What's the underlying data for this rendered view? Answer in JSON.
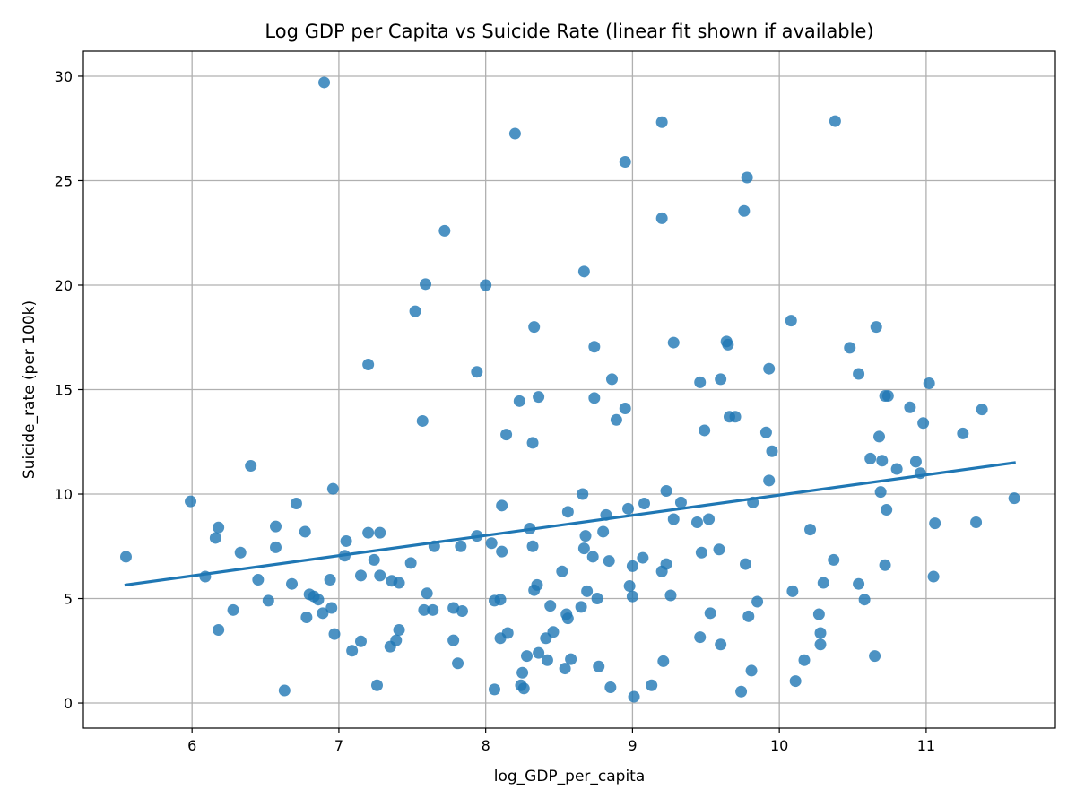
{
  "chart_data": {
    "type": "scatter",
    "title": "Log GDP per Capita vs Suicide Rate (linear fit shown if available)",
    "xlabel": "log_GDP_per_capita",
    "ylabel": "Suicide_rate (per 100k)",
    "xlim": [
      5.26,
      11.88
    ],
    "ylim": [
      -1.2,
      31.2
    ],
    "xticks": [
      6,
      7,
      8,
      9,
      10,
      11
    ],
    "yticks": [
      0,
      5,
      10,
      15,
      20,
      25,
      30
    ],
    "grid": true,
    "color": "#1f77b4",
    "fit_line": {
      "x": [
        5.55,
        11.6
      ],
      "y": [
        5.65,
        11.5
      ]
    },
    "points": [
      [
        5.55,
        7.0
      ],
      [
        5.99,
        9.65
      ],
      [
        6.09,
        6.05
      ],
      [
        6.16,
        7.9
      ],
      [
        6.18,
        8.4
      ],
      [
        6.18,
        3.5
      ],
      [
        6.28,
        4.45
      ],
      [
        6.33,
        7.2
      ],
      [
        6.4,
        11.35
      ],
      [
        6.45,
        5.9
      ],
      [
        6.52,
        4.9
      ],
      [
        6.57,
        8.45
      ],
      [
        6.57,
        7.45
      ],
      [
        6.63,
        0.6
      ],
      [
        6.68,
        5.7
      ],
      [
        6.71,
        9.55
      ],
      [
        6.77,
        8.2
      ],
      [
        6.78,
        4.1
      ],
      [
        6.8,
        5.2
      ],
      [
        6.83,
        5.1
      ],
      [
        6.86,
        4.95
      ],
      [
        6.89,
        4.3
      ],
      [
        6.9,
        29.7
      ],
      [
        6.94,
        5.9
      ],
      [
        6.95,
        4.55
      ],
      [
        6.96,
        10.25
      ],
      [
        6.97,
        3.3
      ],
      [
        7.04,
        7.05
      ],
      [
        7.05,
        7.75
      ],
      [
        7.09,
        2.5
      ],
      [
        7.15,
        2.95
      ],
      [
        7.15,
        6.1
      ],
      [
        7.2,
        16.2
      ],
      [
        7.2,
        8.15
      ],
      [
        7.24,
        6.85
      ],
      [
        7.26,
        0.85
      ],
      [
        7.28,
        8.15
      ],
      [
        7.28,
        6.1
      ],
      [
        7.35,
        2.7
      ],
      [
        7.36,
        5.85
      ],
      [
        7.39,
        3.0
      ],
      [
        7.41,
        5.75
      ],
      [
        7.41,
        3.5
      ],
      [
        7.49,
        6.7
      ],
      [
        7.52,
        18.75
      ],
      [
        7.57,
        13.5
      ],
      [
        7.58,
        4.45
      ],
      [
        7.59,
        20.05
      ],
      [
        7.6,
        5.25
      ],
      [
        7.64,
        4.45
      ],
      [
        7.65,
        7.5
      ],
      [
        7.72,
        22.6
      ],
      [
        7.78,
        3.0
      ],
      [
        7.78,
        4.55
      ],
      [
        7.81,
        1.9
      ],
      [
        7.83,
        7.5
      ],
      [
        7.84,
        4.4
      ],
      [
        7.94,
        15.85
      ],
      [
        7.94,
        8.0
      ],
      [
        8.0,
        20.0
      ],
      [
        8.04,
        7.65
      ],
      [
        8.06,
        0.65
      ],
      [
        8.06,
        4.9
      ],
      [
        8.1,
        4.95
      ],
      [
        8.1,
        3.1
      ],
      [
        8.11,
        7.25
      ],
      [
        8.11,
        9.45
      ],
      [
        8.14,
        12.85
      ],
      [
        8.15,
        3.35
      ],
      [
        8.2,
        27.25
      ],
      [
        8.23,
        14.45
      ],
      [
        8.24,
        0.85
      ],
      [
        8.25,
        1.45
      ],
      [
        8.26,
        0.7
      ],
      [
        8.28,
        2.25
      ],
      [
        8.3,
        8.35
      ],
      [
        8.32,
        12.45
      ],
      [
        8.32,
        7.5
      ],
      [
        8.33,
        18.0
      ],
      [
        8.33,
        5.4
      ],
      [
        8.35,
        5.65
      ],
      [
        8.36,
        14.65
      ],
      [
        8.36,
        2.4
      ],
      [
        8.41,
        3.1
      ],
      [
        8.42,
        2.05
      ],
      [
        8.44,
        4.65
      ],
      [
        8.46,
        3.4
      ],
      [
        8.52,
        6.3
      ],
      [
        8.54,
        1.65
      ],
      [
        8.55,
        4.25
      ],
      [
        8.56,
        9.15
      ],
      [
        8.56,
        4.05
      ],
      [
        8.58,
        2.1
      ],
      [
        8.65,
        4.6
      ],
      [
        8.66,
        10.0
      ],
      [
        8.67,
        20.65
      ],
      [
        8.67,
        7.4
      ],
      [
        8.68,
        8.0
      ],
      [
        8.69,
        5.35
      ],
      [
        8.73,
        7.0
      ],
      [
        8.74,
        14.6
      ],
      [
        8.74,
        17.05
      ],
      [
        8.76,
        5.0
      ],
      [
        8.77,
        1.75
      ],
      [
        8.8,
        8.2
      ],
      [
        8.82,
        9.0
      ],
      [
        8.84,
        6.8
      ],
      [
        8.85,
        0.75
      ],
      [
        8.86,
        15.5
      ],
      [
        8.89,
        13.55
      ],
      [
        8.95,
        25.9
      ],
      [
        8.95,
        14.1
      ],
      [
        8.97,
        9.3
      ],
      [
        8.98,
        5.6
      ],
      [
        9.0,
        6.55
      ],
      [
        9.0,
        5.1
      ],
      [
        9.01,
        0.3
      ],
      [
        9.07,
        6.95
      ],
      [
        9.08,
        9.55
      ],
      [
        9.13,
        0.85
      ],
      [
        9.2,
        27.8
      ],
      [
        9.2,
        23.2
      ],
      [
        9.2,
        6.3
      ],
      [
        9.21,
        2.0
      ],
      [
        9.23,
        10.15
      ],
      [
        9.23,
        6.65
      ],
      [
        9.26,
        5.15
      ],
      [
        9.28,
        17.25
      ],
      [
        9.28,
        8.8
      ],
      [
        9.33,
        9.6
      ],
      [
        9.44,
        8.65
      ],
      [
        9.46,
        15.35
      ],
      [
        9.46,
        3.15
      ],
      [
        9.47,
        7.2
      ],
      [
        9.49,
        13.05
      ],
      [
        9.52,
        8.8
      ],
      [
        9.53,
        4.3
      ],
      [
        9.59,
        7.35
      ],
      [
        9.6,
        15.5
      ],
      [
        9.6,
        2.8
      ],
      [
        9.64,
        17.3
      ],
      [
        9.65,
        17.15
      ],
      [
        9.66,
        13.7
      ],
      [
        9.7,
        13.7
      ],
      [
        9.74,
        0.55
      ],
      [
        9.76,
        23.55
      ],
      [
        9.77,
        6.65
      ],
      [
        9.78,
        25.15
      ],
      [
        9.79,
        4.15
      ],
      [
        9.81,
        1.55
      ],
      [
        9.82,
        9.6
      ],
      [
        9.85,
        4.85
      ],
      [
        9.91,
        12.95
      ],
      [
        9.93,
        16.0
      ],
      [
        9.93,
        10.65
      ],
      [
        9.95,
        12.05
      ],
      [
        10.08,
        18.3
      ],
      [
        10.09,
        5.35
      ],
      [
        10.11,
        1.05
      ],
      [
        10.17,
        2.05
      ],
      [
        10.21,
        8.3
      ],
      [
        10.27,
        4.25
      ],
      [
        10.28,
        2.8
      ],
      [
        10.28,
        3.35
      ],
      [
        10.3,
        5.75
      ],
      [
        10.37,
        6.85
      ],
      [
        10.38,
        27.85
      ],
      [
        10.48,
        17.0
      ],
      [
        10.54,
        15.75
      ],
      [
        10.54,
        5.7
      ],
      [
        10.58,
        4.95
      ],
      [
        10.62,
        11.7
      ],
      [
        10.65,
        2.25
      ],
      [
        10.66,
        18.0
      ],
      [
        10.68,
        12.75
      ],
      [
        10.69,
        10.1
      ],
      [
        10.7,
        11.6
      ],
      [
        10.72,
        6.6
      ],
      [
        10.72,
        14.7
      ],
      [
        10.73,
        9.25
      ],
      [
        10.74,
        14.7
      ],
      [
        10.8,
        11.2
      ],
      [
        10.89,
        14.15
      ],
      [
        10.93,
        11.55
      ],
      [
        10.96,
        11.0
      ],
      [
        10.98,
        13.4
      ],
      [
        11.02,
        15.3
      ],
      [
        11.05,
        6.05
      ],
      [
        11.06,
        8.6
      ],
      [
        11.25,
        12.9
      ],
      [
        11.34,
        8.65
      ],
      [
        11.38,
        14.05
      ],
      [
        11.6,
        9.8
      ]
    ]
  }
}
